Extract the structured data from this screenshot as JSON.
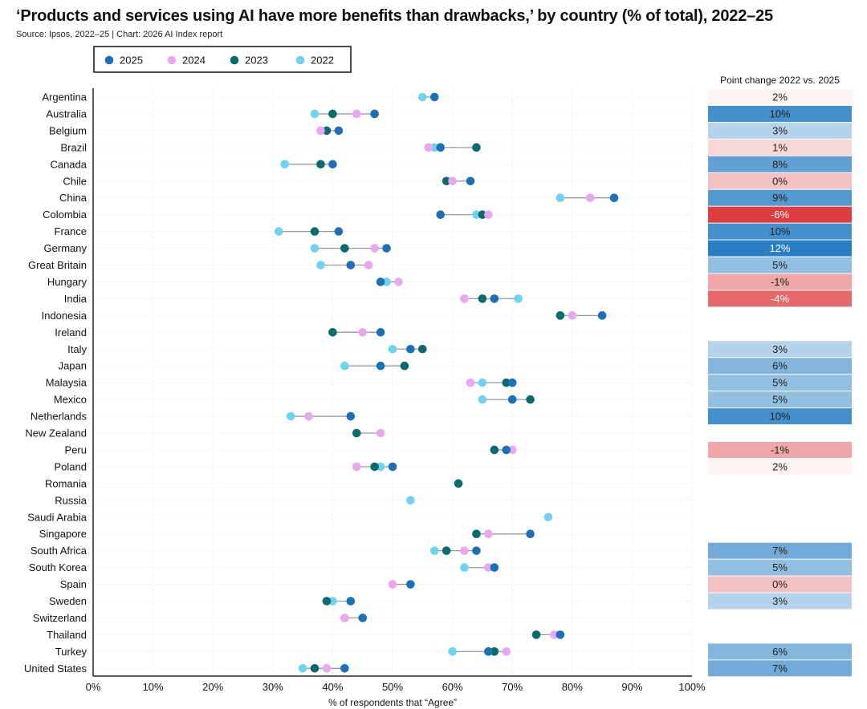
{
  "title": "‘Products and services using AI have more benefits than drawbacks,’ by country (% of total), 2022–25",
  "subtitle": "Source: Ipsos, 2022–25 | Chart: 2026 AI Index report",
  "chart_data": {
    "type": "dot-plot",
    "xlabel": "% of respondents that “Agree”",
    "xlim": [
      0,
      100
    ],
    "xticks": [
      "0%",
      "10%",
      "20%",
      "30%",
      "40%",
      "50%",
      "60%",
      "70%",
      "80%",
      "90%",
      "100%"
    ],
    "xtick_values": [
      0,
      10,
      20,
      30,
      40,
      50,
      60,
      70,
      80,
      90,
      100
    ],
    "legend": [
      {
        "name": "2025",
        "key": "y2025",
        "color": "#1f6fb4"
      },
      {
        "name": "2024",
        "key": "y2024",
        "color": "#e8a8f0"
      },
      {
        "name": "2023",
        "key": "y2023",
        "color": "#0b6a6b"
      },
      {
        "name": "2022",
        "key": "y2022",
        "color": "#6fd3f0"
      }
    ],
    "change_header": "Point change 2022 vs. 2025",
    "countries": [
      {
        "name": "Argentina",
        "y2025": 57,
        "y2024": null,
        "y2023": null,
        "y2022": 55,
        "change": "2%",
        "change_value": 2
      },
      {
        "name": "Australia",
        "y2025": 47,
        "y2024": 44,
        "y2023": 40,
        "y2022": 37,
        "change": "10%",
        "change_value": 10
      },
      {
        "name": "Belgium",
        "y2025": 41,
        "y2024": 38,
        "y2023": 39,
        "y2022": null,
        "change": "3%",
        "change_value": 3
      },
      {
        "name": "Brazil",
        "y2025": 58,
        "y2024": 56,
        "y2023": 64,
        "y2022": 57,
        "change": "1%",
        "change_value": 1
      },
      {
        "name": "Canada",
        "y2025": 40,
        "y2024": null,
        "y2023": 38,
        "y2022": 32,
        "change": "8%",
        "change_value": 8
      },
      {
        "name": "Chile",
        "y2025": 63,
        "y2024": 60,
        "y2023": 59,
        "y2022": null,
        "change": "0%",
        "change_value": 0
      },
      {
        "name": "China",
        "y2025": 87,
        "y2024": 83,
        "y2023": null,
        "y2022": 78,
        "change": "9%",
        "change_value": 9
      },
      {
        "name": "Colombia",
        "y2025": 58,
        "y2024": 66,
        "y2023": 65,
        "y2022": 64,
        "change": "-6%",
        "change_value": -6
      },
      {
        "name": "France",
        "y2025": 41,
        "y2024": null,
        "y2023": 37,
        "y2022": 31,
        "change": "10%",
        "change_value": 10
      },
      {
        "name": "Germany",
        "y2025": 49,
        "y2024": 47,
        "y2023": 42,
        "y2022": 37,
        "change": "12%",
        "change_value": 12
      },
      {
        "name": "Great Britain",
        "y2025": 43,
        "y2024": 46,
        "y2023": null,
        "y2022": 38,
        "change": "5%",
        "change_value": 5
      },
      {
        "name": "Hungary",
        "y2025": 48,
        "y2024": 51,
        "y2023": null,
        "y2022": 49,
        "change": "-1%",
        "change_value": -1
      },
      {
        "name": "India",
        "y2025": 67,
        "y2024": 62,
        "y2023": 65,
        "y2022": 71,
        "change": "-4%",
        "change_value": -4
      },
      {
        "name": "Indonesia",
        "y2025": 85,
        "y2024": 80,
        "y2023": 78,
        "y2022": null,
        "change": "",
        "change_value": null
      },
      {
        "name": "Ireland",
        "y2025": 48,
        "y2024": 45,
        "y2023": 40,
        "y2022": null,
        "change": "",
        "change_value": null
      },
      {
        "name": "Italy",
        "y2025": 53,
        "y2024": null,
        "y2023": 55,
        "y2022": 50,
        "change": "3%",
        "change_value": 3
      },
      {
        "name": "Japan",
        "y2025": 48,
        "y2024": null,
        "y2023": 52,
        "y2022": 42,
        "change": "6%",
        "change_value": 6
      },
      {
        "name": "Malaysia",
        "y2025": 70,
        "y2024": 63,
        "y2023": 69,
        "y2022": 65,
        "change": "5%",
        "change_value": 5
      },
      {
        "name": "Mexico",
        "y2025": 70,
        "y2024": null,
        "y2023": 73,
        "y2022": 65,
        "change": "5%",
        "change_value": 5
      },
      {
        "name": "Netherlands",
        "y2025": 43,
        "y2024": 36,
        "y2023": null,
        "y2022": 33,
        "change": "10%",
        "change_value": 10
      },
      {
        "name": "New Zealand",
        "y2025": null,
        "y2024": 48,
        "y2023": 44,
        "y2022": null,
        "change": "",
        "change_value": null
      },
      {
        "name": "Peru",
        "y2025": 69,
        "y2024": 70,
        "y2023": 67,
        "y2022": null,
        "change": "-1%",
        "change_value": -1
      },
      {
        "name": "Poland",
        "y2025": 50,
        "y2024": 44,
        "y2023": 47,
        "y2022": 48,
        "change": "2%",
        "change_value": 2
      },
      {
        "name": "Romania",
        "y2025": null,
        "y2024": null,
        "y2023": 61,
        "y2022": null,
        "change": "",
        "change_value": null
      },
      {
        "name": "Russia",
        "y2025": null,
        "y2024": null,
        "y2023": null,
        "y2022": 53,
        "change": "",
        "change_value": null
      },
      {
        "name": "Saudi Arabia",
        "y2025": null,
        "y2024": null,
        "y2023": null,
        "y2022": 76,
        "change": "",
        "change_value": null
      },
      {
        "name": "Singapore",
        "y2025": 73,
        "y2024": 66,
        "y2023": 64,
        "y2022": null,
        "change": "",
        "change_value": null
      },
      {
        "name": "South Africa",
        "y2025": 64,
        "y2024": 62,
        "y2023": 59,
        "y2022": 57,
        "change": "7%",
        "change_value": 7
      },
      {
        "name": "South Korea",
        "y2025": 67,
        "y2024": 66,
        "y2023": null,
        "y2022": 62,
        "change": "5%",
        "change_value": 5
      },
      {
        "name": "Spain",
        "y2025": 53,
        "y2024": 50,
        "y2023": null,
        "y2022": null,
        "change": "0%",
        "change_value": 0
      },
      {
        "name": "Sweden",
        "y2025": 43,
        "y2024": null,
        "y2023": 39,
        "y2022": 40,
        "change": "3%",
        "change_value": 3
      },
      {
        "name": "Switzerland",
        "y2025": 45,
        "y2024": 42,
        "y2023": null,
        "y2022": null,
        "change": "",
        "change_value": null
      },
      {
        "name": "Thailand",
        "y2025": 78,
        "y2024": 77,
        "y2023": 74,
        "y2022": null,
        "change": "",
        "change_value": null
      },
      {
        "name": "Turkey",
        "y2025": 66,
        "y2024": 69,
        "y2023": 67,
        "y2022": 60,
        "change": "6%",
        "change_value": 6
      },
      {
        "name": "United States",
        "y2025": 42,
        "y2024": 39,
        "y2023": 37,
        "y2022": 35,
        "change": "7%",
        "change_value": 7
      }
    ]
  }
}
